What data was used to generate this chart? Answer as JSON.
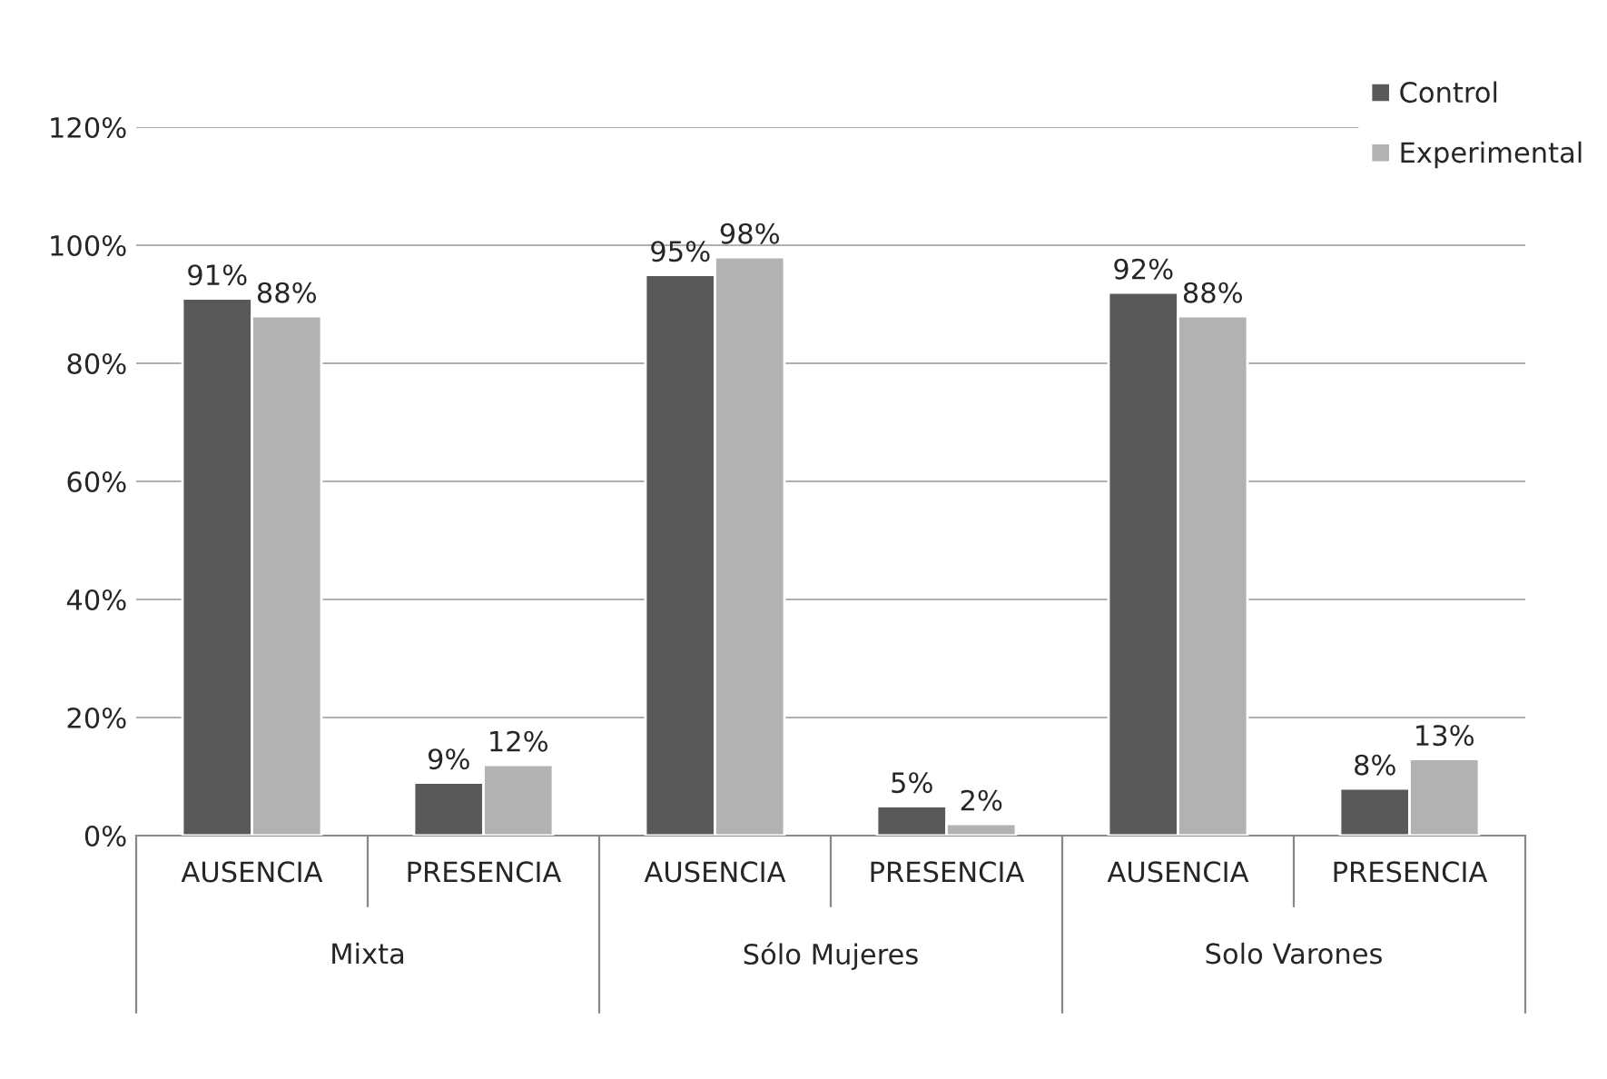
{
  "chart_data": {
    "type": "bar",
    "categories": [
      "AUSENCIA",
      "PRESENCIA",
      "AUSENCIA",
      "PRESENCIA",
      "AUSENCIA",
      "PRESENCIA"
    ],
    "series": [
      {
        "name": "Control",
        "color": "#595959",
        "values": [
          91,
          9,
          95,
          5,
          92,
          8
        ]
      },
      {
        "name": "Experimental",
        "color": "#b2b2b2",
        "values": [
          88,
          12,
          98,
          2,
          88,
          13
        ]
      }
    ],
    "value_labels": [
      [
        "91%",
        "9%",
        "95%",
        "5%",
        "92%",
        "8%"
      ],
      [
        "88%",
        "12%",
        "98%",
        "2%",
        "88%",
        "13%"
      ]
    ],
    "annotations": [
      "Mixta",
      "Sólo Mujeres",
      "Solo Varones"
    ],
    "ylim": [
      0,
      120
    ],
    "yticks": [
      {
        "value": 0,
        "label": "0%"
      },
      {
        "value": 20,
        "label": "20%"
      },
      {
        "value": 40,
        "label": "40%"
      },
      {
        "value": 60,
        "label": "60%"
      },
      {
        "value": 80,
        "label": "80%"
      },
      {
        "value": 100,
        "label": "100%"
      },
      {
        "value": 120,
        "label": "120%"
      }
    ],
    "grid": "y",
    "legend": "top right"
  }
}
